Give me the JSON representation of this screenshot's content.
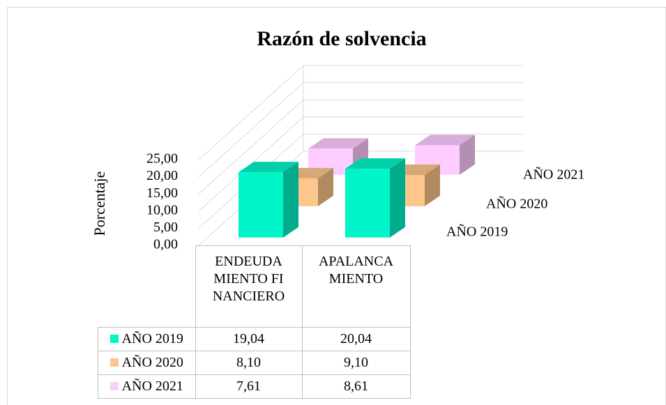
{
  "chart_data": {
    "type": "bar3d",
    "title": "Razón de solvencia",
    "y_label": "Porcentaje",
    "categories": [
      "ENDEUDAMIENTO FINANCIERO",
      "APALANCAMIENTO"
    ],
    "series": [
      {
        "name": "AÑO 2019",
        "color": "#00f5c8",
        "values": [
          19.04,
          20.04
        ],
        "value_labels": [
          "19,04",
          "20,04"
        ]
      },
      {
        "name": "AÑO 2020",
        "color": "#fcc68c",
        "values": [
          8.1,
          9.1
        ],
        "value_labels": [
          "8,10",
          "9,10"
        ]
      },
      {
        "name": "AÑO 2021",
        "color": "#ffccff",
        "values": [
          7.61,
          8.61
        ],
        "value_labels": [
          "7,61",
          "8,61"
        ]
      }
    ],
    "ylim": [
      0,
      25
    ],
    "yticks": [
      {
        "value": 0,
        "label": "0,00"
      },
      {
        "value": 5,
        "label": "5,00"
      },
      {
        "value": 10,
        "label": "10,00"
      },
      {
        "value": 15,
        "label": "15,00"
      },
      {
        "value": 20,
        "label": "20,00"
      },
      {
        "value": 25,
        "label": "25,00"
      }
    ],
    "grid": true
  }
}
